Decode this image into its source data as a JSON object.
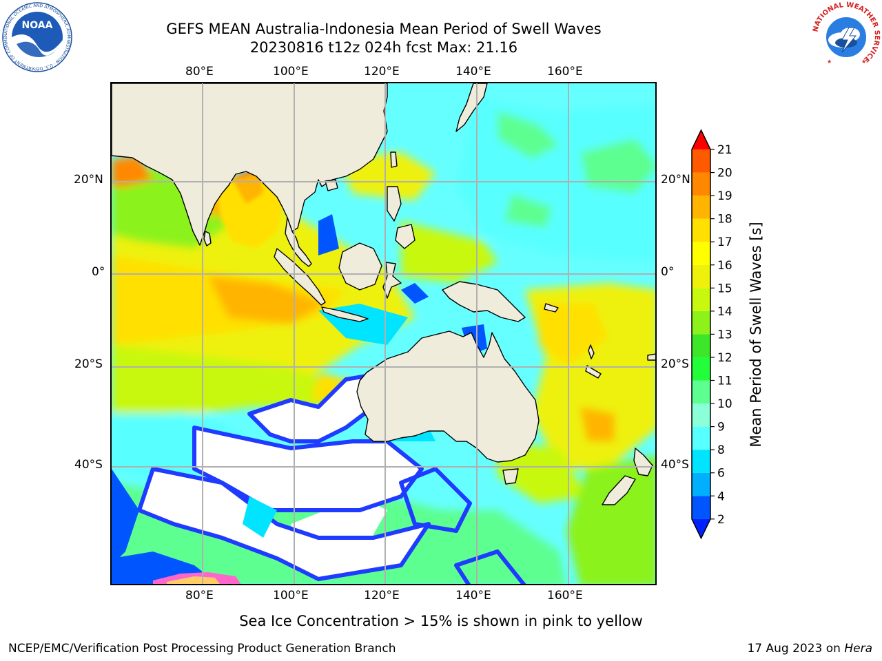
{
  "header": {
    "title_line1": "GEFS MEAN Australia-Indonesia Mean Period of Swell Waves",
    "title_line2": "20230816 t12z 024h fcst   Max: 21.16"
  },
  "map": {
    "lon_ticks": [
      "80°E",
      "100°E",
      "120°E",
      "140°E",
      "160°E"
    ],
    "lat_ticks": [
      "20°N",
      "0°",
      "20°S",
      "40°S"
    ],
    "land_color": "#efecdc",
    "ice_color": "#ffffff",
    "grid_color": "#b0b0b0"
  },
  "colorbar": {
    "label": "Mean Period of Swell Waves [s]",
    "ticks": [
      "2",
      "4",
      "6",
      "8",
      "9",
      "10",
      "11",
      "12",
      "13",
      "14",
      "15",
      "16",
      "17",
      "18",
      "19",
      "20",
      "21"
    ],
    "colors": [
      "#0055ff",
      "#00b0ff",
      "#00e4ff",
      "#58ffff",
      "#8affd8",
      "#5dff90",
      "#22ff3a",
      "#3ee62a",
      "#8cf21a",
      "#c8f80e",
      "#eef10a",
      "#ffff00",
      "#ffe000",
      "#ffb400",
      "#ff8800",
      "#ff5a00",
      "#ff2a00"
    ],
    "under_color": "#0022ff",
    "over_color": "#ff0000"
  },
  "note": "Sea Ice Concentration > 15% is shown in pink to yellow",
  "footer": {
    "left": "NCEP/EMC/Verification Post Processing Product Generation Branch",
    "date": "17 Aug 2023 on",
    "host": "Hera"
  },
  "logos": {
    "noaa_text": "NOAA",
    "noaa_ring": "NATIONAL OCEANIC AND ATMOSPHERIC ADMINISTRATION · U.S. DEPARTMENT OF COMMERCE",
    "nws_ring": "NATIONAL WEATHER SERVICE"
  }
}
